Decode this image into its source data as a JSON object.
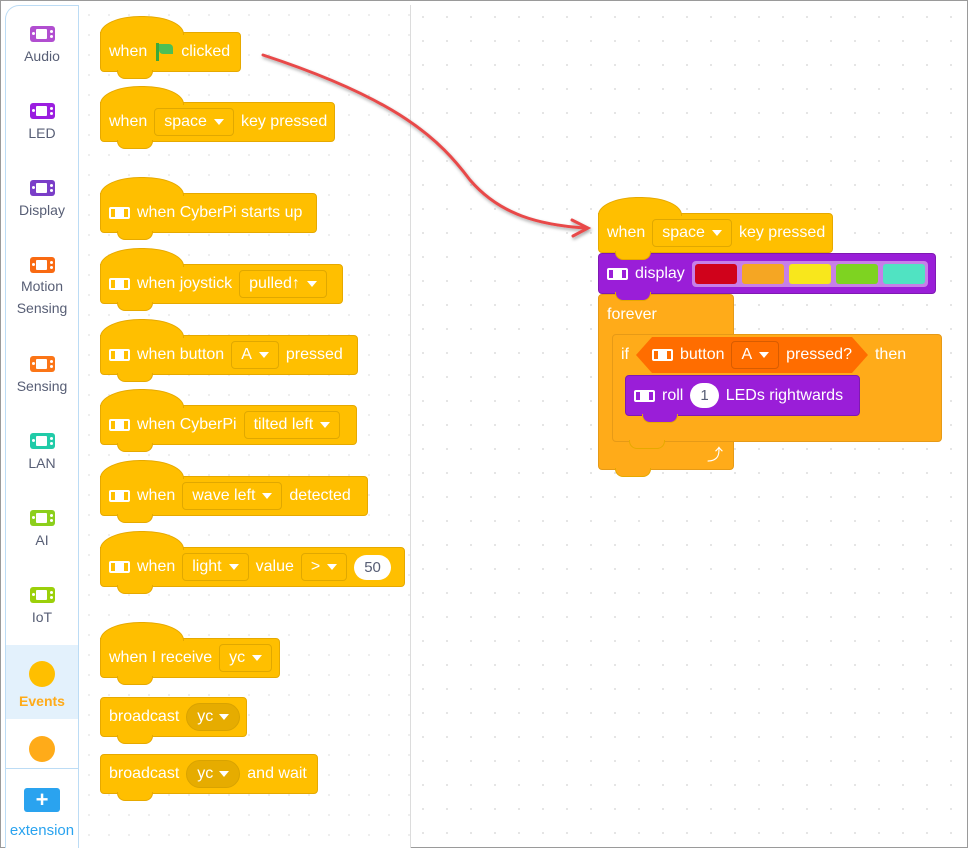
{
  "sidebar": {
    "categories": [
      {
        "label": "Audio",
        "color": "#b14ed0"
      },
      {
        "label": "LED",
        "color": "#9b1ee0"
      },
      {
        "label": "Display",
        "color": "#7a3ec8"
      },
      {
        "label": "Motion\nSensing",
        "color": "#f96a12"
      },
      {
        "label": "Sensing",
        "color": "#fb7517"
      },
      {
        "label": "LAN",
        "color": "#21cba8"
      },
      {
        "label": "AI",
        "color": "#8ccf1c"
      },
      {
        "label": "IoT",
        "color": "#9bd00a"
      },
      {
        "label": "Events",
        "color": "#ffbf00",
        "active": true
      },
      {
        "label": "",
        "color": "#ffab19"
      }
    ],
    "extension_label": "extension",
    "extension_icon": "plus-icon"
  },
  "palette": {
    "flag": {
      "when": "when",
      "clicked": "clicked"
    },
    "key": {
      "when": "when",
      "key": "space",
      "pressed": "key pressed"
    },
    "startup": {
      "text": "when CyberPi starts up"
    },
    "joystick": {
      "text": "when joystick",
      "value": "pulled↑"
    },
    "button": {
      "text": "when button",
      "value": "A",
      "pressed": "pressed"
    },
    "tilt": {
      "text": "when CyberPi",
      "value": "tilted left"
    },
    "wave": {
      "text": "when",
      "value": "wave left",
      "detected": "detected"
    },
    "light": {
      "when": "when",
      "sensor": "light",
      "value": "value",
      "op": ">",
      "num": "50"
    },
    "receive": {
      "text": "when I receive",
      "msg": "yc"
    },
    "broadcast": {
      "text": "broadcast",
      "msg": "yc"
    },
    "broadcast_wait": {
      "text": "broadcast",
      "msg": "yc",
      "wait": "and wait"
    }
  },
  "script": {
    "hat": {
      "when": "when",
      "key": "space",
      "pressed": "key pressed"
    },
    "display": {
      "text": "display",
      "colors": [
        "#d0021b",
        "#f5a623",
        "#f8e71c",
        "#7ed321",
        "#50e3c2"
      ]
    },
    "forever": "forever",
    "if": {
      "if": "if",
      "button": "button",
      "value": "A",
      "pressed": "pressed?",
      "then": "then"
    },
    "roll": {
      "roll": "roll",
      "num": "1",
      "text": "LEDs rightwards"
    }
  },
  "annotation": {
    "arrow_color": "#e84a4a"
  }
}
